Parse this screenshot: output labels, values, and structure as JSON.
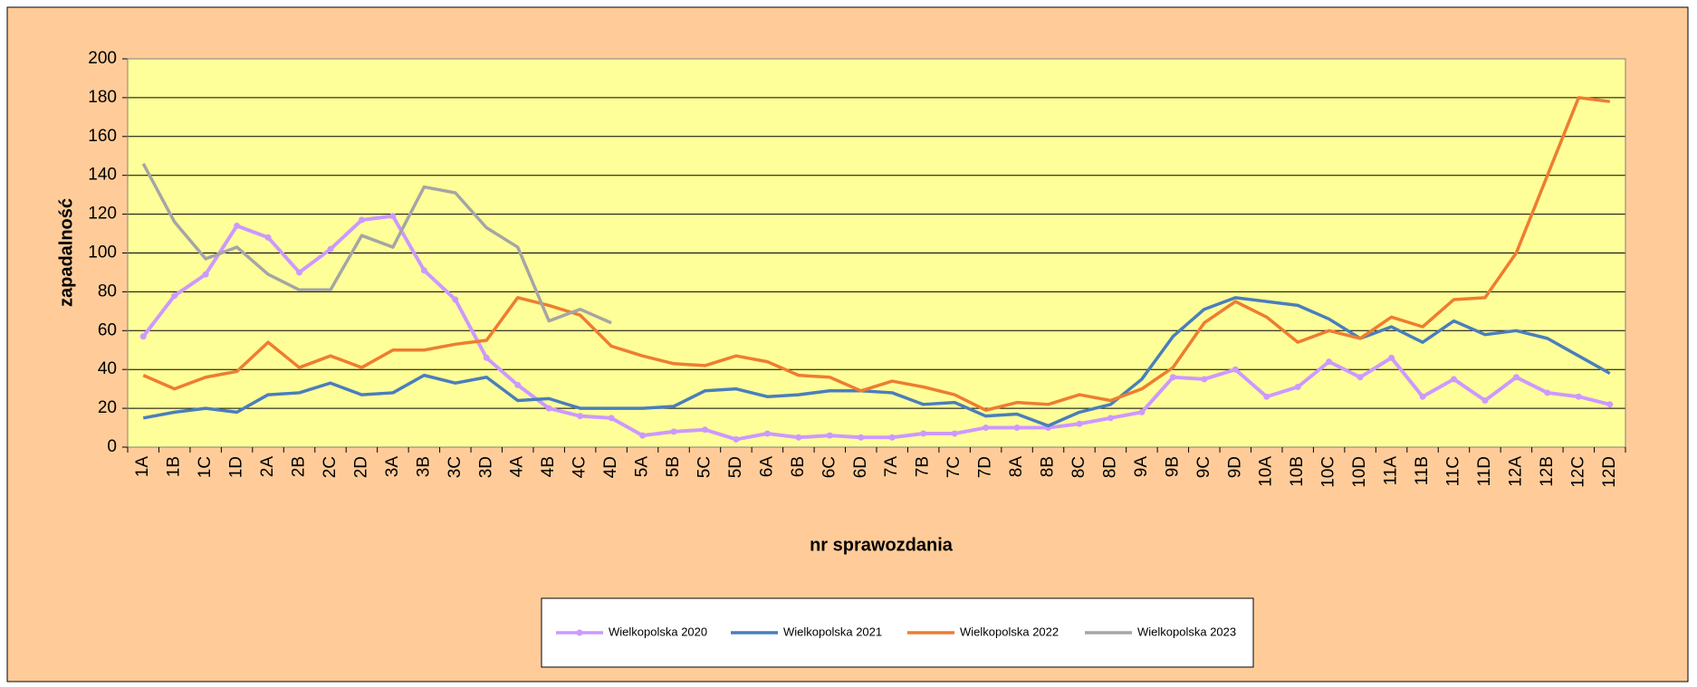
{
  "chart_data": {
    "type": "line",
    "x_label": "nr sprawozdania",
    "y_label": "zapadalność",
    "categories": [
      "1A",
      "1B",
      "1C",
      "1D",
      "2A",
      "2B",
      "2C",
      "2D",
      "3A",
      "3B",
      "3C",
      "3D",
      "4A",
      "4B",
      "4C",
      "4D",
      "5A",
      "5B",
      "5C",
      "5D",
      "6A",
      "6B",
      "6C",
      "6D",
      "7A",
      "7B",
      "7C",
      "7D",
      "8A",
      "8B",
      "8C",
      "8D",
      "9A",
      "9B",
      "9C",
      "9D",
      "10A",
      "10B",
      "10C",
      "10D",
      "11A",
      "11B",
      "11C",
      "11D",
      "12A",
      "12B",
      "12C",
      "12D"
    ],
    "series": [
      {
        "name": "Wielkopolska 2020",
        "color": "#cc99ff",
        "markers": true,
        "values": [
          57,
          78,
          89,
          114,
          108,
          90,
          102,
          117,
          119,
          91,
          76,
          46,
          32,
          20,
          16,
          15,
          6,
          8,
          9,
          4,
          7,
          5,
          6,
          5,
          5,
          7,
          7,
          10,
          10,
          10,
          12,
          15,
          18,
          36,
          35,
          40,
          26,
          31,
          44,
          36,
          46,
          26,
          35,
          24,
          36,
          28,
          26,
          22
        ]
      },
      {
        "name": "Wielkopolska 2021",
        "color": "#4a7ebb",
        "markers": false,
        "values": [
          15,
          18,
          20,
          18,
          27,
          28,
          33,
          27,
          28,
          37,
          33,
          36,
          24,
          25,
          20,
          20,
          20,
          21,
          29,
          30,
          26,
          27,
          29,
          29,
          28,
          22,
          23,
          16,
          17,
          11,
          18,
          22,
          35,
          57,
          71,
          77,
          75,
          73,
          66,
          56,
          62,
          54,
          65,
          58,
          60,
          56,
          47,
          38
        ]
      },
      {
        "name": "Wielkopolska 2022",
        "color": "#ed7d31",
        "markers": false,
        "values": [
          37,
          30,
          36,
          39,
          54,
          41,
          47,
          41,
          50,
          50,
          53,
          55,
          77,
          73,
          68,
          52,
          47,
          43,
          42,
          47,
          44,
          37,
          36,
          29,
          34,
          31,
          27,
          19,
          23,
          22,
          27,
          24,
          30,
          41,
          64,
          75,
          67,
          54,
          60,
          56,
          67,
          62,
          76,
          77,
          100,
          140,
          180,
          178
        ]
      },
      {
        "name": "Wielkopolska 2023",
        "color": "#a5a5a5",
        "markers": false,
        "values": [
          146,
          116,
          97,
          103,
          89,
          81,
          81,
          109,
          103,
          134,
          131,
          113,
          103,
          65,
          71,
          64,
          null,
          null,
          null,
          null,
          null,
          null,
          null,
          null,
          null,
          null,
          null,
          null,
          null,
          null,
          null,
          null,
          null,
          null,
          null,
          null,
          null,
          null,
          null,
          null,
          null,
          null,
          null,
          null,
          null,
          null,
          null,
          null
        ]
      }
    ],
    "ylim": [
      0,
      200
    ],
    "yticks": [
      0,
      20,
      40,
      60,
      80,
      100,
      120,
      140,
      160,
      180,
      200
    ],
    "grid": true
  }
}
